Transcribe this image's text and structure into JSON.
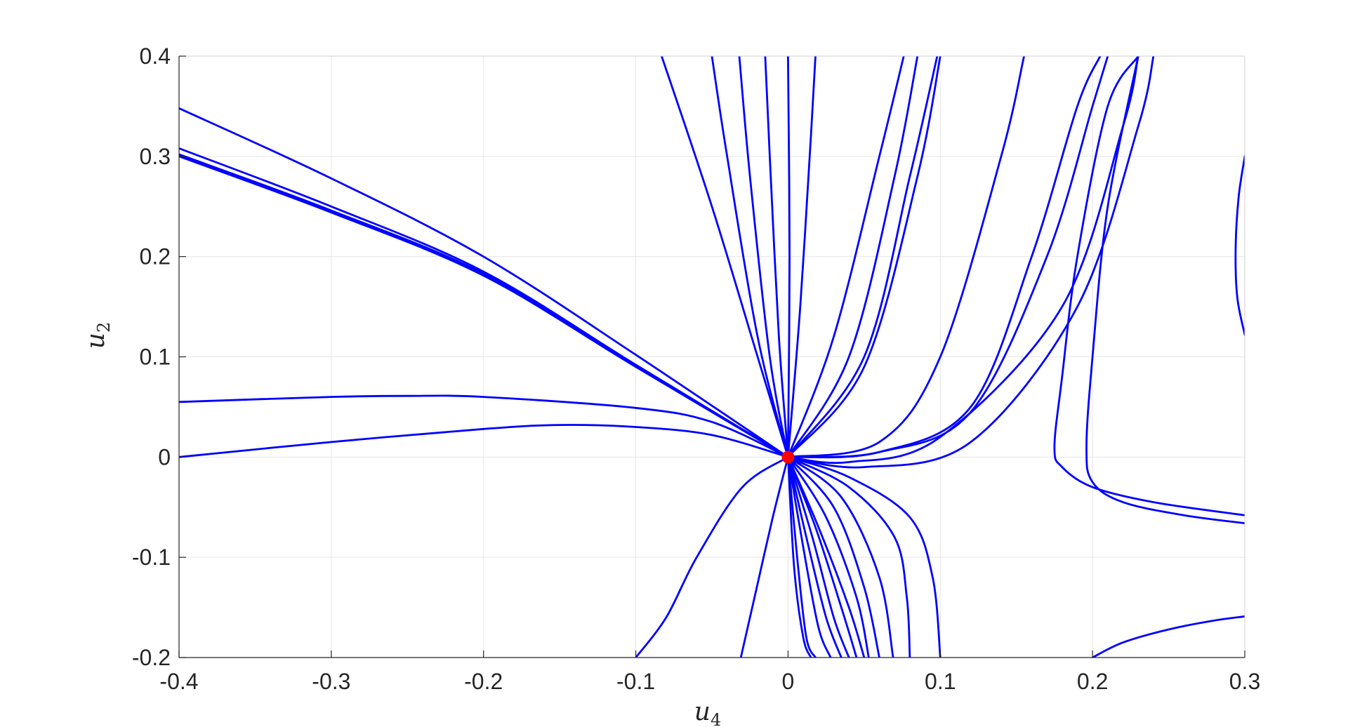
{
  "chart_data": {
    "type": "line",
    "title": "",
    "xlabel": {
      "var": "u",
      "sub": "4"
    },
    "ylabel": {
      "var": "u",
      "sub": "2"
    },
    "xlim": [
      -0.4,
      0.3
    ],
    "ylim": [
      -0.2,
      0.4
    ],
    "grid": true,
    "x_ticks": [
      -0.4,
      -0.3,
      -0.2,
      -0.1,
      0,
      0.1,
      0.2,
      0.3
    ],
    "x_tick_labels": [
      "-0.4",
      "-0.3",
      "-0.2",
      "-0.1",
      "0",
      "0.1",
      "0.2",
      "0.3"
    ],
    "y_ticks": [
      -0.2,
      -0.1,
      0,
      0.1,
      0.2,
      0.3,
      0.4
    ],
    "y_tick_labels": [
      "-0.2",
      "-0.1",
      "0",
      "0.1",
      "0.2",
      "0.3",
      "0.4"
    ],
    "line_color": "#0000FF",
    "marker_color": "#FF0000",
    "equilibrium": {
      "x": 0,
      "y": 0
    },
    "series": [
      {
        "x": [
          0,
          -0.1,
          -0.2,
          -0.3,
          -0.4
        ],
        "y": [
          0,
          0.102,
          0.2,
          0.278,
          0.348
        ]
      },
      {
        "x": [
          0,
          -0.1,
          -0.2,
          -0.3,
          -0.4
        ],
        "y": [
          0,
          0.092,
          0.185,
          0.25,
          0.308
        ]
      },
      {
        "x": [
          0,
          -0.1,
          -0.2,
          -0.3,
          -0.4
        ],
        "y": [
          0,
          0.092,
          0.183,
          0.246,
          0.302
        ]
      },
      {
        "x": [
          0,
          -0.1,
          -0.2,
          -0.3,
          -0.4
        ],
        "y": [
          0,
          0.09,
          0.181,
          0.244,
          0.3
        ]
      },
      {
        "x": [
          0,
          -0.05,
          -0.1,
          -0.2,
          -0.25,
          -0.3,
          -0.4
        ],
        "y": [
          0,
          0.035,
          0.049,
          0.06,
          0.061,
          0.06,
          0.055
        ]
      },
      {
        "x": [
          0,
          -0.05,
          -0.1,
          -0.15,
          -0.2,
          -0.3,
          -0.4
        ],
        "y": [
          0,
          0.022,
          0.03,
          0.032,
          0.028,
          0.015,
          0
        ]
      },
      {
        "x": [
          0,
          -0.03,
          -0.06,
          -0.08,
          -0.1
        ],
        "y": [
          0,
          -0.03,
          -0.1,
          -0.16,
          -0.2
        ]
      },
      {
        "x": [
          0,
          -0.01,
          -0.022,
          -0.031
        ],
        "y": [
          0,
          -0.06,
          -0.14,
          -0.2
        ]
      },
      {
        "x": [
          0,
          -0.02,
          -0.05,
          -0.083
        ],
        "y": [
          0,
          0.1,
          0.25,
          0.4
        ]
      },
      {
        "x": [
          0,
          -0.02,
          -0.04,
          -0.05
        ],
        "y": [
          0,
          0.12,
          0.3,
          0.4
        ]
      },
      {
        "x": [
          0,
          -0.012,
          -0.025,
          -0.032
        ],
        "y": [
          0,
          0.1,
          0.28,
          0.4
        ]
      },
      {
        "x": [
          0,
          -0.006,
          -0.012,
          -0.015
        ],
        "y": [
          0,
          0.12,
          0.3,
          0.4
        ]
      },
      {
        "x": [
          0,
          0.001,
          0.0
        ],
        "y": [
          0,
          0.2,
          0.4
        ]
      },
      {
        "x": [
          0,
          0.008,
          0.015,
          0.018
        ],
        "y": [
          0,
          0.15,
          0.32,
          0.4
        ]
      },
      {
        "x": [
          0,
          0.03,
          0.06,
          0.076
        ],
        "y": [
          0,
          0.12,
          0.3,
          0.4
        ]
      },
      {
        "x": [
          0,
          0.04,
          0.07,
          0.085
        ],
        "y": [
          0,
          0.1,
          0.28,
          0.4
        ]
      },
      {
        "x": [
          0,
          0.05,
          0.08,
          0.098
        ],
        "y": [
          0,
          0.1,
          0.28,
          0.4
        ]
      },
      {
        "x": [
          0,
          0.05,
          0.085,
          0.1
        ],
        "y": [
          0,
          0.09,
          0.28,
          0.4
        ]
      },
      {
        "x": [
          0,
          0.06,
          0.1,
          0.14,
          0.155
        ],
        "y": [
          0,
          0.015,
          0.1,
          0.3,
          0.4
        ]
      },
      {
        "x": [
          0,
          0.06,
          0.12,
          0.16,
          0.19,
          0.205
        ],
        "y": [
          0,
          0.005,
          0.05,
          0.2,
          0.35,
          0.4
        ]
      },
      {
        "x": [
          0,
          0.06,
          0.12,
          0.17,
          0.2,
          0.21
        ],
        "y": [
          0,
          0.005,
          0.045,
          0.2,
          0.35,
          0.4
        ]
      },
      {
        "x": [
          0,
          0.04,
          0.1,
          0.18,
          0.22,
          0.23
        ],
        "y": [
          0,
          -0.005,
          0.02,
          0.15,
          0.33,
          0.4
        ]
      },
      {
        "x": [
          0,
          0.05,
          0.12,
          0.19,
          0.23,
          0.24
        ],
        "y": [
          0,
          -0.01,
          0.015,
          0.15,
          0.33,
          0.4
        ]
      },
      {
        "x": [
          0,
          0.04,
          0.08,
          0.095,
          0.1
        ],
        "y": [
          0,
          -0.02,
          -0.06,
          -0.12,
          -0.2
        ]
      },
      {
        "x": [
          0,
          0.04,
          0.07,
          0.078,
          0.08
        ],
        "y": [
          0,
          -0.03,
          -0.08,
          -0.14,
          -0.2
        ]
      },
      {
        "x": [
          0,
          0.035,
          0.06,
          0.069
        ],
        "y": [
          0,
          -0.04,
          -0.12,
          -0.2
        ]
      },
      {
        "x": [
          0,
          0.03,
          0.05,
          0.06
        ],
        "y": [
          0,
          -0.05,
          -0.13,
          -0.2
        ]
      },
      {
        "x": [
          0,
          0.025,
          0.045,
          0.053
        ],
        "y": [
          0,
          -0.06,
          -0.14,
          -0.2
        ]
      },
      {
        "x": [
          0,
          0.02,
          0.04,
          0.05
        ],
        "y": [
          0,
          -0.07,
          -0.15,
          -0.2
        ]
      },
      {
        "x": [
          0,
          0.018,
          0.035,
          0.045
        ],
        "y": [
          0,
          -0.07,
          -0.15,
          -0.2
        ]
      },
      {
        "x": [
          0,
          0.016,
          0.03,
          0.04
        ],
        "y": [
          0,
          -0.08,
          -0.16,
          -0.2
        ]
      },
      {
        "x": [
          0,
          0.012,
          0.025,
          0.035
        ],
        "y": [
          0,
          -0.08,
          -0.16,
          -0.2
        ]
      },
      {
        "x": [
          0,
          0.01,
          0.02,
          0.028
        ],
        "y": [
          0,
          -0.09,
          -0.17,
          -0.2
        ]
      },
      {
        "x": [
          0,
          0.006,
          0.012,
          0.018
        ],
        "y": [
          0,
          -0.1,
          -0.18,
          -0.2
        ]
      },
      {
        "x": [
          0,
          0.004,
          0.01,
          0.015
        ],
        "y": [
          0,
          -0.11,
          -0.18,
          -0.2
        ]
      },
      {
        "x": [
          0.3,
          0.24,
          0.2,
          0.18,
          0.175,
          0.18,
          0.19,
          0.21,
          0.23
        ],
        "y": [
          -0.058,
          -0.045,
          -0.03,
          -0.01,
          0.01,
          0.08,
          0.2,
          0.35,
          0.4
        ]
      },
      {
        "x": [
          0.3,
          0.26,
          0.22,
          0.2,
          0.196,
          0.2,
          0.21,
          0.23
        ],
        "y": [
          -0.066,
          -0.058,
          -0.045,
          -0.025,
          0.01,
          0.1,
          0.25,
          0.4
        ]
      },
      {
        "x": [
          0.2,
          0.22,
          0.25,
          0.28,
          0.3
        ],
        "y": [
          -0.2,
          -0.185,
          -0.172,
          -0.163,
          -0.159
        ]
      },
      {
        "x": [
          0.3,
          0.295,
          0.294,
          0.296,
          0.3
        ],
        "y": [
          0.122,
          0.16,
          0.21,
          0.26,
          0.3
        ]
      }
    ]
  }
}
